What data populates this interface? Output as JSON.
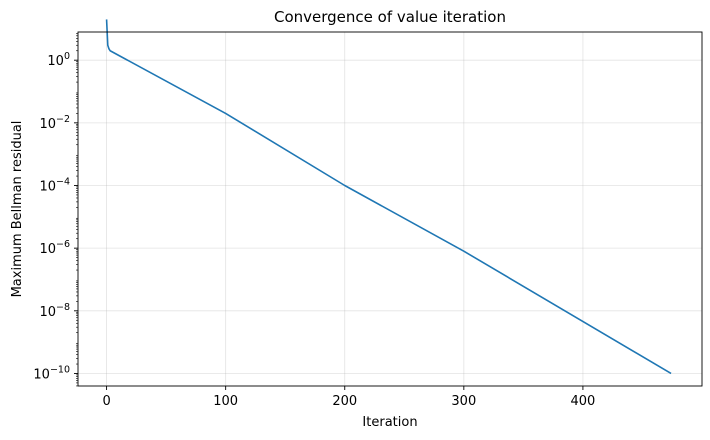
{
  "chart_data": {
    "type": "line",
    "title": "Convergence of value iteration",
    "xlabel": "Iteration",
    "ylabel": "Maximum Bellman residual",
    "xlim": [
      -24,
      500
    ],
    "ylim_log10": [
      -10.4,
      0.9
    ],
    "yscale": "log",
    "grid": true,
    "line_color": "#1f77b4",
    "x_ticks": [
      {
        "value": 0,
        "label": "0"
      },
      {
        "value": 100,
        "label": "100"
      },
      {
        "value": 200,
        "label": "200"
      },
      {
        "value": 300,
        "label": "300"
      },
      {
        "value": 400,
        "label": "400"
      }
    ],
    "y_ticks": [
      {
        "exponent": 0,
        "base": "10",
        "sup": "0"
      },
      {
        "exponent": -2,
        "base": "10",
        "sup": "−2"
      },
      {
        "exponent": -4,
        "base": "10",
        "sup": "−4"
      },
      {
        "exponent": -6,
        "base": "10",
        "sup": "−6"
      },
      {
        "exponent": -8,
        "base": "10",
        "sup": "−8"
      },
      {
        "exponent": -10,
        "base": "10",
        "sup": "−10"
      }
    ],
    "series": [
      {
        "values": [
          {
            "x": 0,
            "y": 20
          },
          {
            "x": 1,
            "y": 3
          },
          {
            "x": 2,
            "y": 2.3
          },
          {
            "x": 3,
            "y": 2.0
          },
          {
            "x": 100,
            "y": 0.02
          },
          {
            "x": 200,
            "y": 0.0001
          },
          {
            "x": 300,
            "y": 8e-07
          },
          {
            "x": 474,
            "y": 1e-10
          }
        ]
      }
    ]
  }
}
